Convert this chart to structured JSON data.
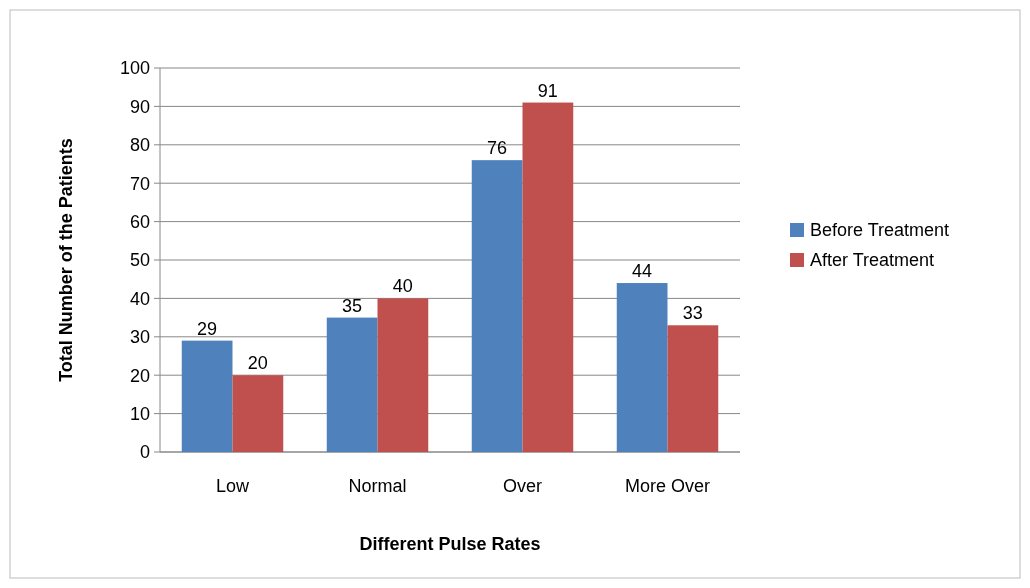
{
  "chart_data": {
    "type": "bar",
    "xlabel": "Different Pulse Rates",
    "ylabel": "Total Number of the Patients",
    "categories": [
      "Low",
      "Normal",
      "Over",
      "More Over"
    ],
    "series": [
      {
        "name": "Before Treatment",
        "color": "#4f81bd",
        "values": [
          29,
          35,
          76,
          44
        ]
      },
      {
        "name": "After Treatment",
        "color": "#c0504d",
        "values": [
          20,
          40,
          91,
          33
        ]
      }
    ],
    "ylim": [
      0,
      100
    ],
    "yticks": [
      0,
      10,
      20,
      30,
      40,
      50,
      60,
      70,
      80,
      90,
      100
    ],
    "grid": "y",
    "legend": "right",
    "data_labels": true
  }
}
